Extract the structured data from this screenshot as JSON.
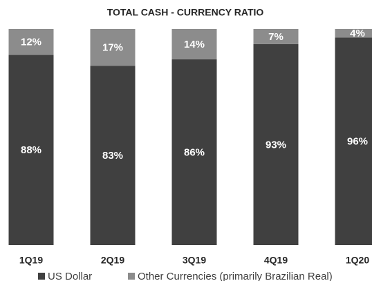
{
  "chart_data": {
    "type": "stacked_bar",
    "title": "TOTAL CASH - CURRENCY RATIO",
    "categories": [
      "1Q19",
      "2Q19",
      "3Q19",
      "4Q19",
      "1Q20"
    ],
    "series": [
      {
        "name": "US Dollar",
        "color": "#404040",
        "values": [
          88,
          83,
          86,
          93,
          96
        ],
        "value_labels": [
          "88%",
          "83%",
          "86%",
          "93%",
          "96%"
        ]
      },
      {
        "name": "Other Currencies (primarily Brazilian Real)",
        "color": "#8c8c8c",
        "values": [
          12,
          17,
          14,
          7,
          4
        ],
        "value_labels": [
          "12%",
          "17%",
          "14%",
          "7%",
          "4%"
        ]
      }
    ],
    "ylim": [
      0,
      100
    ],
    "legend": "bottom"
  }
}
